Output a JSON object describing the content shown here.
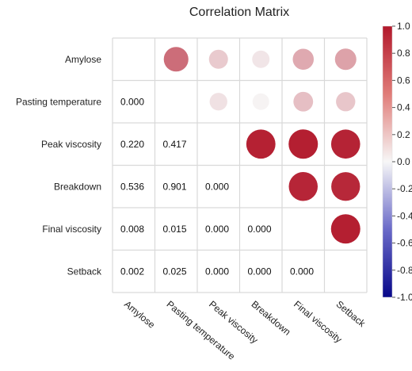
{
  "chart_data": {
    "type": "heatmap",
    "title": "Correlation Matrix",
    "variables": [
      "Amylose",
      "Pasting temperature",
      "Peak viscosity",
      "Breakdown",
      "Final viscosity",
      "Setback"
    ],
    "correlations_upper": [
      [
        null,
        0.62,
        0.2,
        0.08,
        0.35,
        0.38
      ],
      [
        null,
        null,
        0.1,
        0.02,
        0.25,
        0.22
      ],
      [
        null,
        null,
        null,
        0.96,
        0.97,
        0.95
      ],
      [
        null,
        null,
        null,
        null,
        0.94,
        0.93
      ],
      [
        null,
        null,
        null,
        null,
        null,
        0.97
      ],
      [
        null,
        null,
        null,
        null,
        null,
        null
      ]
    ],
    "pvalues_lower": [
      [
        null,
        null,
        null,
        null,
        null,
        null
      ],
      [
        "0.000",
        null,
        null,
        null,
        null,
        null
      ],
      [
        "0.220",
        "0.417",
        null,
        null,
        null,
        null
      ],
      [
        "0.536",
        "0.901",
        "0.000",
        null,
        null,
        null
      ],
      [
        "0.008",
        "0.015",
        "0.000",
        "0.000",
        null,
        null
      ],
      [
        "0.002",
        "0.025",
        "0.000",
        "0.000",
        "0.000",
        null
      ]
    ],
    "colorbar": {
      "range": [
        -1.0,
        1.0
      ],
      "ticks": [
        "1.0",
        "0.8",
        "0.6",
        "0.4",
        "0.2",
        "0.0",
        "-0.2",
        "-0.4",
        "-0.6",
        "-0.8",
        "-1.0"
      ],
      "colors": {
        "negative": "#08088a",
        "neutral": "#f7f7f7",
        "positive": "#b2182b"
      }
    },
    "grid": true
  }
}
